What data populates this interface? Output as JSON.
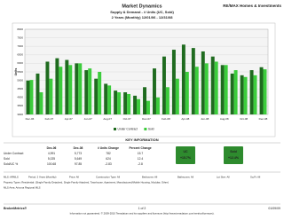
{
  "header": {
    "title": "Market Dynamics",
    "brand": "RE/MAX Homes & Investments",
    "subtitle": "Supply & Demand - # Units (UC, Sold)",
    "period": "2 Years (Monthly) 12/01/06 - 12/31/08"
  },
  "chart_data": {
    "type": "bar",
    "y_label": "Units",
    "categories": [
      "Dec-06",
      null,
      "Feb-07",
      null,
      "Apr-07",
      null,
      "Jun-07",
      null,
      "Aug-07",
      null,
      "Oct-07",
      null,
      "Dec-07",
      null,
      "Feb-08",
      null,
      "Apr-08",
      null,
      "Jun-08",
      null,
      "Aug-08",
      null,
      "Oct-08",
      null,
      "Dec-08"
    ],
    "series": [
      {
        "name": "Under Contract",
        "color": "#1f6b1f",
        "values": [
          4991,
          5400,
          6100,
          6300,
          6200,
          6000,
          5600,
          5100,
          4800,
          4400,
          4300,
          4100,
          4600,
          5700,
          6400,
          6800,
          7100,
          6900,
          6700,
          6400,
          5900,
          5400,
          5300,
          5600,
          5773
        ]
      },
      {
        "name": "Sold",
        "color": "#3ccc3c",
        "values": [
          5025,
          4300,
          5100,
          5800,
          5900,
          6000,
          5700,
          5500,
          4700,
          4300,
          4200,
          3900,
          3800,
          4000,
          4600,
          5100,
          5500,
          5800,
          6000,
          6100,
          5900,
          5600,
          5200,
          5300,
          5649
        ]
      }
    ],
    "ylim": [
      3000,
      8000
    ],
    "yticks": [
      3000,
      3500,
      4000,
      4500,
      5000,
      5500,
      6000,
      6500,
      7000,
      7500,
      8000
    ],
    "grid": true
  },
  "key_information": {
    "title": "KEY INFORMATION",
    "columns": [
      "Dec-06",
      "Dec-08",
      "# Units Change",
      "Percent Change"
    ],
    "rows": [
      [
        "Under Contract",
        "4,991",
        "5,773",
        "782",
        "15.7"
      ],
      [
        "Sold",
        "5,025",
        "5,649",
        "624",
        "12.4"
      ],
      [
        "Sold/UC %",
        "100.68",
        "97.85",
        "-2.83",
        "-2.8"
      ]
    ]
  },
  "badges": [
    {
      "label": "UC",
      "value": "+15.7%"
    },
    {
      "label": "Sold",
      "value": "+12.4%"
    }
  ],
  "filters": [
    "MLS: ARMLS",
    "Period: 2 Years (Monthly)",
    "Price: All",
    "Construction Type: All",
    "Bedrooms: All",
    "Bathrooms: All",
    "Lot Size: All",
    "Sq Ft: All"
  ],
  "property_types": "Property Types: Residential: (Single Family Detached, Single Family Attached, Townhouse, Apartment, Manufactured/Mobile Housing, Modular, Other)",
  "mls_area": "MLS Area: Arizona Regional MLS",
  "footer": {
    "left": "BrokerMetrics®",
    "page": "1 of 2",
    "date": "01/09/09",
    "notice": "Information not guaranteed. © 2009-2010 Terradatum and its suppliers and licensors (http://www.terradatum.com/metrics/licensors)."
  }
}
